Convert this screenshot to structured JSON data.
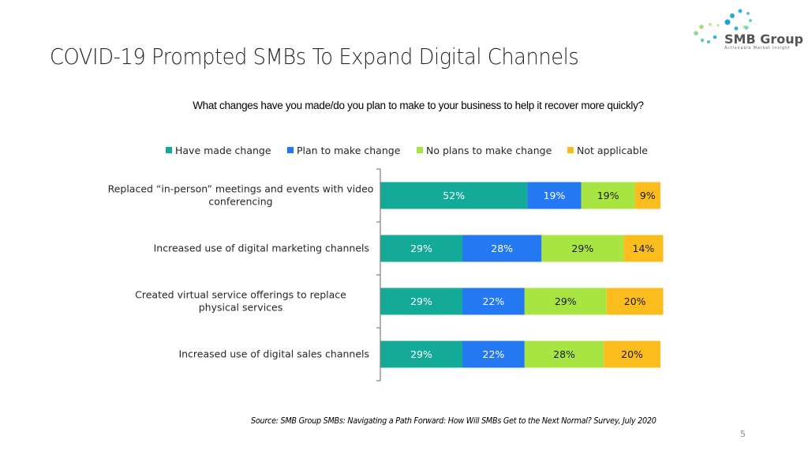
{
  "slide": {
    "title": "COVID-19 Prompted SMBs To Expand Digital Channels",
    "logo_name": "SMB Group",
    "logo_tagline": "Actionable Market Insight",
    "source": "Source: SMB Group SMBs: Navigating a Path Forward:  How Will SMBs Get to the Next Normal? Survey, July 2020",
    "page_number": "5"
  },
  "chart_data": {
    "type": "bar",
    "orientation": "horizontal",
    "stacked": true,
    "title": "What changes have you made/do you plan to make to your business to help it recover more quickly?",
    "xlabel": "",
    "ylabel": "",
    "xlim": [
      0,
      100
    ],
    "grid": false,
    "legend_position": "top",
    "categories": [
      "Replaced “in-person” meetings and events with video conferencing",
      "Increased use of digital marketing channels",
      "Created virtual service offerings to replace physical services",
      "Increased use of digital sales channels"
    ],
    "series": [
      {
        "name": "Have made change",
        "color": "#13ab98",
        "label_color": "#ffffff",
        "values": [
          52,
          29,
          29,
          29
        ]
      },
      {
        "name": "Plan to make change",
        "color": "#2479f2",
        "label_color": "#ffffff",
        "values": [
          19,
          28,
          22,
          22
        ]
      },
      {
        "name": "No plans to make change",
        "color": "#a9e542",
        "label_color": "#1a1a1a",
        "values": [
          19,
          29,
          29,
          28
        ]
      },
      {
        "name": "Not applicable",
        "color": "#fbbd1d",
        "label_color": "#1a1a1a",
        "values": [
          9,
          14,
          20,
          20
        ]
      }
    ],
    "value_suffix": "%"
  }
}
